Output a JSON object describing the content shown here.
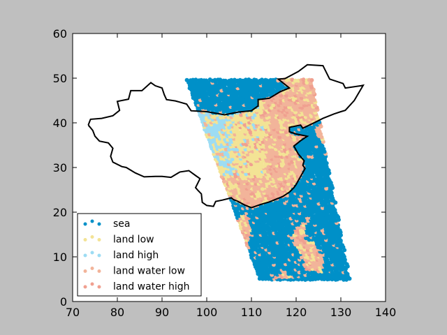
{
  "chart_data": {
    "type": "scatter",
    "title": "",
    "xlabel": "",
    "ylabel": "",
    "xlim": [
      70,
      140
    ],
    "ylim": [
      0,
      60
    ],
    "xticks": [
      "70",
      "80",
      "90",
      "100",
      "110",
      "120",
      "130",
      "140"
    ],
    "yticks": [
      "0",
      "10",
      "20",
      "30",
      "40",
      "50",
      "60"
    ],
    "grid": false,
    "legend_position": "lower-left",
    "swath": {
      "top_left": [
        95.5,
        50
      ],
      "top_right": [
        123.5,
        50
      ],
      "bottom_right": [
        132,
        5
      ],
      "bottom_left": [
        112,
        5
      ]
    },
    "series": [
      {
        "name": "sea",
        "color": "#0090c8"
      },
      {
        "name": "land low",
        "color": "#f3e395"
      },
      {
        "name": "land high",
        "color": "#9ddcf3"
      },
      {
        "name": "land water low",
        "color": "#f2b49a"
      },
      {
        "name": "land water high",
        "color": "#f0a090"
      }
    ],
    "boundary_outline": [
      [
        73.5,
        39.5
      ],
      [
        74,
        40.8
      ],
      [
        76.5,
        41
      ],
      [
        79,
        41.6
      ],
      [
        80.5,
        42.8
      ],
      [
        80,
        44.8
      ],
      [
        82.5,
        45.3
      ],
      [
        83,
        47.2
      ],
      [
        85.5,
        47.2
      ],
      [
        87.5,
        49
      ],
      [
        88.5,
        48.3
      ],
      [
        90,
        47.8
      ],
      [
        90.5,
        46.3
      ],
      [
        91,
        45.2
      ],
      [
        93,
        44.9
      ],
      [
        95.5,
        44.2
      ],
      [
        96.5,
        42.7
      ],
      [
        100,
        42.5
      ],
      [
        104,
        41.8
      ],
      [
        107,
        42.4
      ],
      [
        110,
        42.7
      ],
      [
        111.5,
        43.8
      ],
      [
        111.5,
        45.2
      ],
      [
        114,
        45.5
      ],
      [
        116.5,
        47
      ],
      [
        118.5,
        47.8
      ],
      [
        116,
        49.8
      ],
      [
        117.5,
        49.9
      ],
      [
        120.5,
        51.5
      ],
      [
        122.5,
        53
      ],
      [
        126,
        52.8
      ],
      [
        127.5,
        49.8
      ],
      [
        130.5,
        48.8
      ],
      [
        131,
        47.8
      ],
      [
        134.5,
        48.3
      ],
      [
        135,
        48.4
      ],
      [
        133,
        45
      ],
      [
        131,
        42.8
      ],
      [
        130,
        42.5
      ],
      [
        128.5,
        42
      ],
      [
        126,
        41
      ],
      [
        124,
        40
      ],
      [
        121.5,
        38.8
      ],
      [
        121,
        39.5
      ],
      [
        118.5,
        39
      ],
      [
        118.5,
        38
      ],
      [
        120,
        37.5
      ],
      [
        122.5,
        37
      ],
      [
        121,
        36
      ],
      [
        119.5,
        34.8
      ],
      [
        120.5,
        33
      ],
      [
        121.8,
        31.5
      ],
      [
        121.5,
        30.5
      ],
      [
        122,
        29.8
      ],
      [
        121,
        28
      ],
      [
        120,
        26.2
      ],
      [
        119.5,
        25.5
      ],
      [
        118.5,
        24.5
      ],
      [
        117,
        23.5
      ],
      [
        114,
        22.3
      ],
      [
        112,
        21.7
      ],
      [
        110,
        21
      ],
      [
        108.5,
        21.6
      ],
      [
        106.8,
        22.5
      ],
      [
        106,
        22.8
      ],
      [
        105.5,
        23.2
      ],
      [
        103.5,
        22.7
      ],
      [
        102,
        22.4
      ],
      [
        101.5,
        21.3
      ],
      [
        100,
        21.5
      ],
      [
        99,
        22.2
      ],
      [
        98.8,
        24.1
      ],
      [
        98,
        24.9
      ],
      [
        97.5,
        25.5
      ],
      [
        98.5,
        27.5
      ],
      [
        97.5,
        28.2
      ],
      [
        96,
        29.3
      ],
      [
        94,
        29
      ],
      [
        92,
        27.8
      ],
      [
        90,
        28
      ],
      [
        88.5,
        28
      ],
      [
        86,
        27.9
      ],
      [
        84,
        28.8
      ],
      [
        82,
        30
      ],
      [
        81,
        30.2
      ],
      [
        79,
        31.2
      ],
      [
        78.5,
        32.5
      ],
      [
        79,
        34.3
      ],
      [
        78,
        35.5
      ],
      [
        76,
        35.9
      ],
      [
        75,
        37
      ],
      [
        74.5,
        38.3
      ],
      [
        73.5,
        39.5
      ]
    ]
  }
}
